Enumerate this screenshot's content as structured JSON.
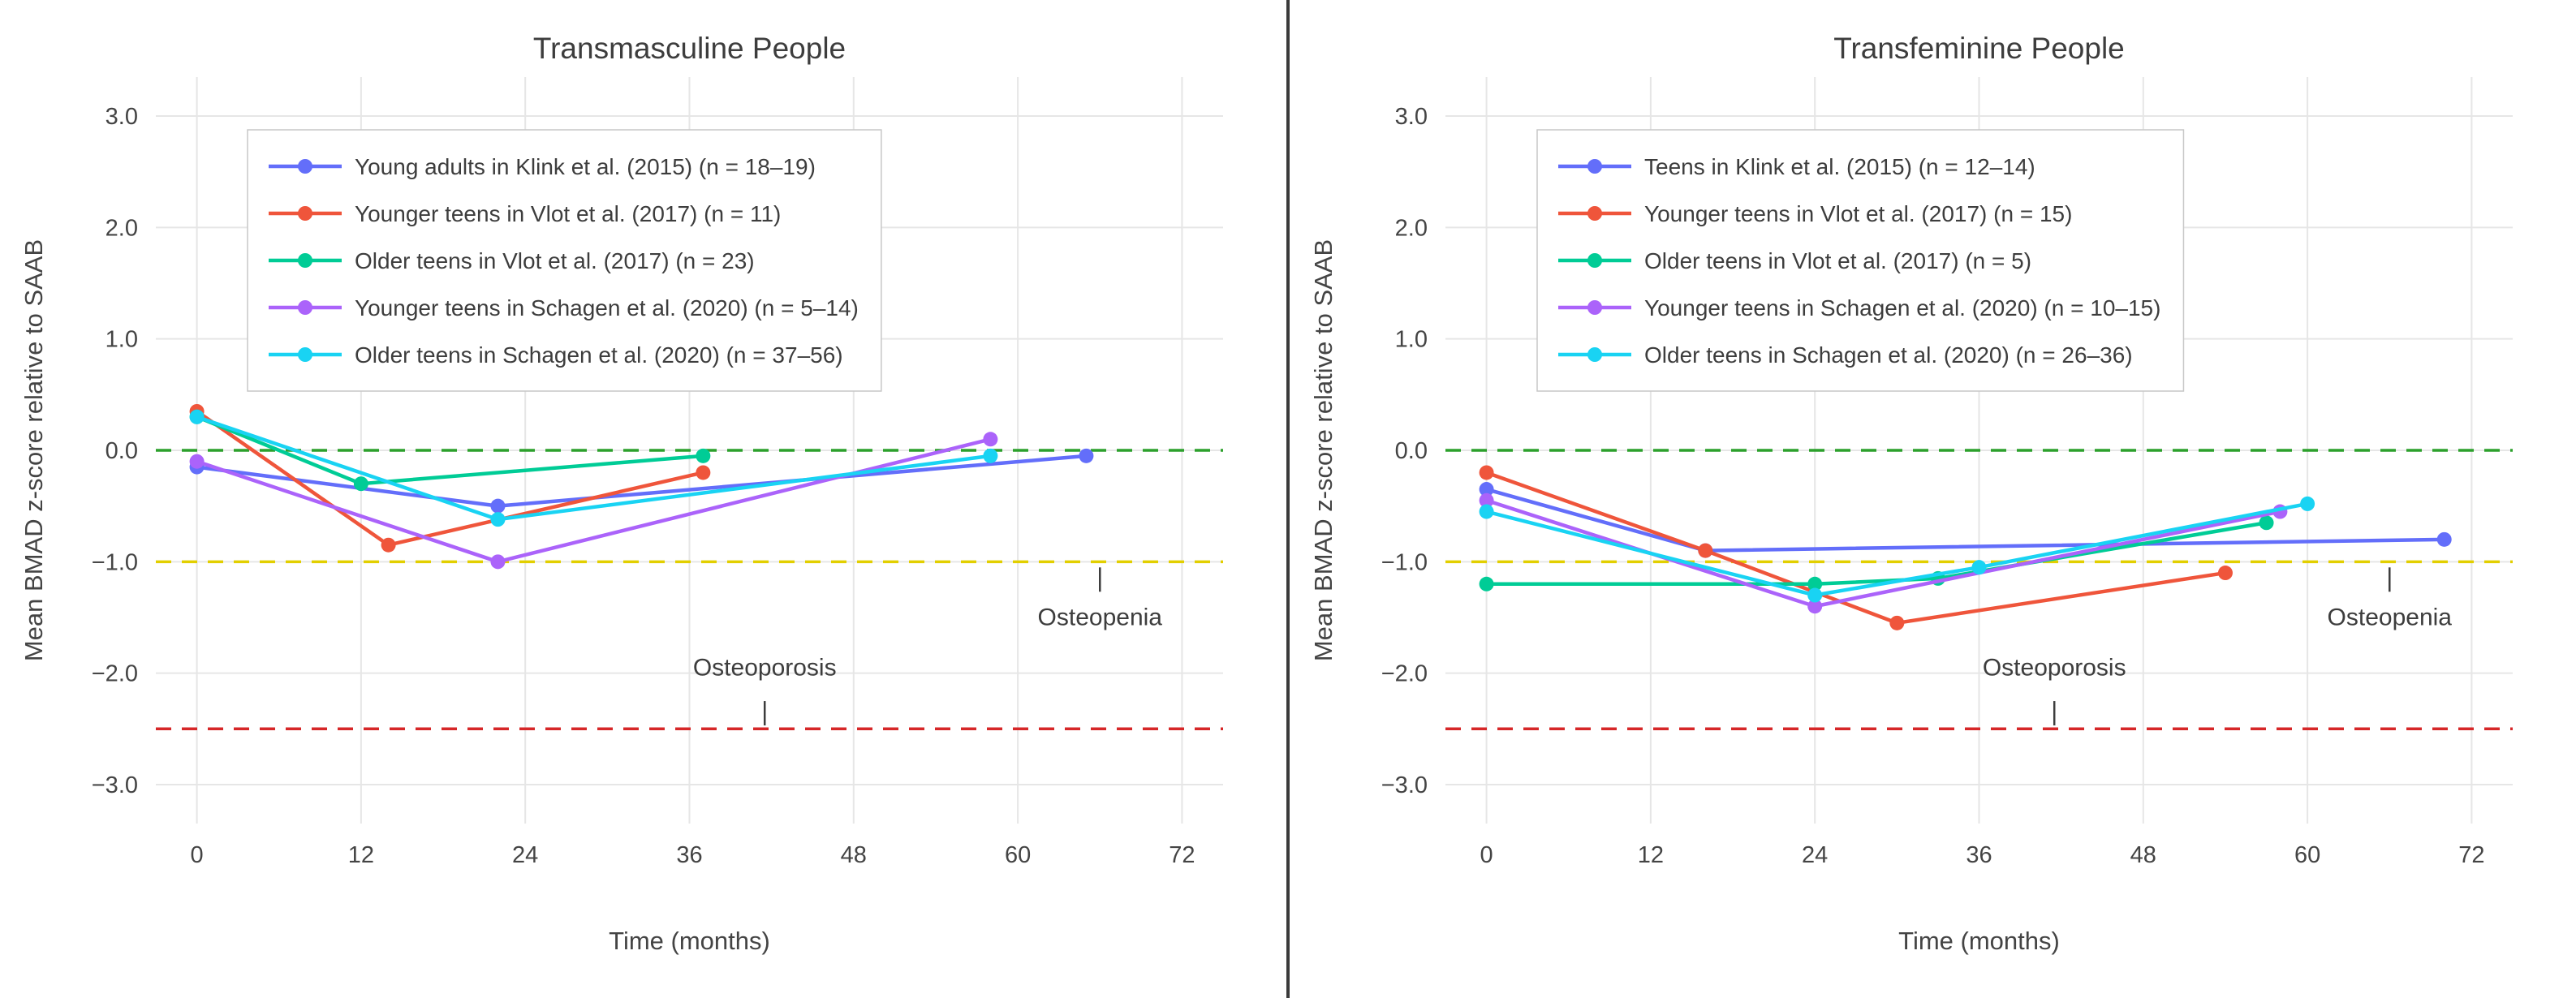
{
  "style": {
    "background": "#ffffff",
    "divider_color": "#3a3a3a",
    "grid_color": "#e6e6e6",
    "tick_text_color": "#444444",
    "title_color": "#3d3d3d",
    "legend_border_color": "#c7c7c7",
    "annotation_color": "#3d3d3d"
  },
  "chart_data": [
    {
      "type": "line",
      "title": "Transmasculine People",
      "xlabel": "Time (months)",
      "ylabel": "Mean BMAD z-score relative to SAAB",
      "xlim": [
        -3,
        75
      ],
      "ylim": [
        -3.35,
        3.35
      ],
      "xticks": [
        0,
        12,
        24,
        36,
        48,
        60,
        72
      ],
      "yticks": [
        3,
        2,
        1,
        0,
        -1,
        -2,
        -3
      ],
      "grid": true,
      "legend_position": "top-left-inside",
      "reference_lines": [
        {
          "name": "zero-reference-line",
          "y": 0,
          "color": "#2ca02c",
          "dash": "dash"
        },
        {
          "name": "osteopenia-threshold-line",
          "y": -1,
          "color": "#e2cf00",
          "dash": "dash"
        },
        {
          "name": "osteoporosis-threshold-line",
          "y": -2.5,
          "color": "#d62728",
          "dash": "dash"
        }
      ],
      "annotations": [
        {
          "text": "Osteopenia",
          "x": 66,
          "text_y": -1.57,
          "tick_y": -1.16
        },
        {
          "text": "Osteoporosis",
          "x": 41.5,
          "text_y": -2.02,
          "tick_y": -2.36
        }
      ],
      "series": [
        {
          "name": "Young adults in Klink et al. (2015) (n = 18–19)",
          "color": "#636efa",
          "x": [
            0,
            22,
            65
          ],
          "y": [
            -0.15,
            -0.5,
            -0.05
          ]
        },
        {
          "name": "Younger teens in Vlot et al. (2017) (n = 11)",
          "color": "#ef553b",
          "x": [
            0,
            14,
            37
          ],
          "y": [
            0.35,
            -0.85,
            -0.2
          ]
        },
        {
          "name": "Older teens in Vlot et al. (2017) (n = 23)",
          "color": "#00cc96",
          "x": [
            0,
            12,
            37
          ],
          "y": [
            0.3,
            -0.3,
            -0.05
          ]
        },
        {
          "name": "Younger teens in Schagen et al. (2020) (n = 5–14)",
          "color": "#ab63fa",
          "x": [
            0,
            22,
            58
          ],
          "y": [
            -0.1,
            -1.0,
            0.1
          ]
        },
        {
          "name": "Older teens in Schagen et al. (2020) (n = 37–56)",
          "color": "#19d3f3",
          "x": [
            0,
            22,
            58
          ],
          "y": [
            0.3,
            -0.62,
            -0.05
          ]
        }
      ]
    },
    {
      "type": "line",
      "title": "Transfeminine People",
      "xlabel": "Time (months)",
      "ylabel": "Mean BMAD z-score relative to SAAB",
      "xlim": [
        -3,
        75
      ],
      "ylim": [
        -3.35,
        3.35
      ],
      "xticks": [
        0,
        12,
        24,
        36,
        48,
        60,
        72
      ],
      "yticks": [
        3,
        2,
        1,
        0,
        -1,
        -2,
        -3
      ],
      "grid": true,
      "legend_position": "top-left-inside",
      "reference_lines": [
        {
          "name": "zero-reference-line",
          "y": 0,
          "color": "#2ca02c",
          "dash": "dash"
        },
        {
          "name": "osteopenia-threshold-line",
          "y": -1,
          "color": "#e2cf00",
          "dash": "dash"
        },
        {
          "name": "osteoporosis-threshold-line",
          "y": -2.5,
          "color": "#d62728",
          "dash": "dash"
        }
      ],
      "annotations": [
        {
          "text": "Osteopenia",
          "x": 66,
          "text_y": -1.57,
          "tick_y": -1.16
        },
        {
          "text": "Osteoporosis",
          "x": 41.5,
          "text_y": -2.02,
          "tick_y": -2.36
        }
      ],
      "series": [
        {
          "name": "Teens in Klink et al. (2015) (n = 12–14)",
          "color": "#636efa",
          "x": [
            0,
            16,
            70
          ],
          "y": [
            -0.35,
            -0.9,
            -0.8
          ]
        },
        {
          "name": "Younger teens in Vlot et al. (2017) (n = 15)",
          "color": "#ef553b",
          "x": [
            0,
            16,
            30,
            54
          ],
          "y": [
            -0.2,
            -0.9,
            -1.55,
            -1.1
          ]
        },
        {
          "name": "Older teens in Vlot et al. (2017) (n = 5)",
          "color": "#00cc96",
          "x": [
            0,
            24,
            33,
            57
          ],
          "y": [
            -1.2,
            -1.2,
            -1.15,
            -0.65
          ]
        },
        {
          "name": "Younger teens in Schagen et al. (2020) (n = 10–15)",
          "color": "#ab63fa",
          "x": [
            0,
            24,
            58
          ],
          "y": [
            -0.45,
            -1.4,
            -0.55
          ]
        },
        {
          "name": "Older teens in Schagen et al. (2020) (n = 26–36)",
          "color": "#19d3f3",
          "x": [
            0,
            24,
            36,
            60
          ],
          "y": [
            -0.55,
            -1.3,
            -1.05,
            -0.48
          ]
        }
      ]
    }
  ]
}
